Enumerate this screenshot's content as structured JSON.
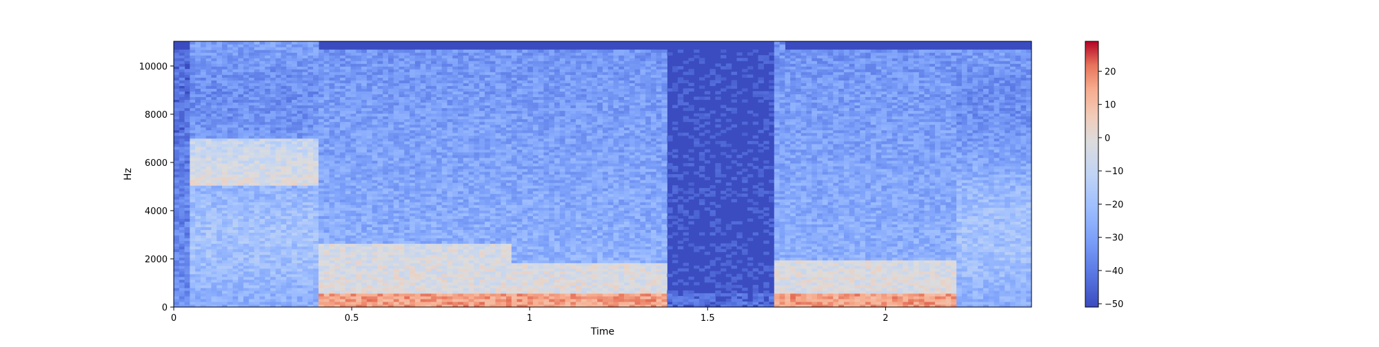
{
  "chart_data": {
    "type": "heatmap",
    "subtype": "spectrogram",
    "title": "",
    "xlabel": "Time",
    "ylabel": "Hz",
    "xlim": [
      0,
      2.41
    ],
    "ylim": [
      0,
      11025
    ],
    "x_ticks": [
      0,
      0.5,
      1,
      1.5,
      2
    ],
    "x_tick_labels": [
      "0",
      "0.5",
      "1",
      "1.5",
      "2"
    ],
    "y_ticks": [
      0,
      2000,
      4000,
      6000,
      8000,
      10000
    ],
    "y_tick_labels": [
      "0",
      "2000",
      "4000",
      "6000",
      "8000",
      "10000"
    ],
    "grid": false,
    "colormap": "coolwarm",
    "colorbar": {
      "label": "",
      "range": [
        -51,
        29
      ],
      "ticks": [
        -50,
        -40,
        -30,
        -20,
        -10,
        0,
        10,
        20
      ],
      "tick_labels": [
        "−50",
        "−40",
        "−30",
        "−20",
        "−10",
        "0",
        "10",
        "20"
      ],
      "placement": "right"
    },
    "segments": [
      {
        "t_start": 0.0,
        "t_end": 0.04,
        "level": "low",
        "note": "near-silence"
      },
      {
        "t_start": 0.04,
        "t_end": 0.4,
        "level": "broadband",
        "peak_band_hz": [
          5000,
          7000
        ]
      },
      {
        "t_start": 0.4,
        "t_end": 0.95,
        "level": "voiced",
        "peak_band_hz": [
          0,
          2600
        ]
      },
      {
        "t_start": 0.95,
        "t_end": 1.38,
        "level": "voiced",
        "peak_band_hz": [
          0,
          1800
        ]
      },
      {
        "t_start": 1.38,
        "t_end": 1.68,
        "level": "silence"
      },
      {
        "t_start": 1.68,
        "t_end": 2.2,
        "level": "voiced",
        "peak_band_hz": [
          0,
          2000
        ]
      },
      {
        "t_start": 2.2,
        "t_end": 2.41,
        "level": "broadband"
      }
    ]
  },
  "colors": {
    "coolwarm_low": "#3b4cc0",
    "coolwarm_mid": "#dddddd",
    "coolwarm_high": "#b40426"
  }
}
